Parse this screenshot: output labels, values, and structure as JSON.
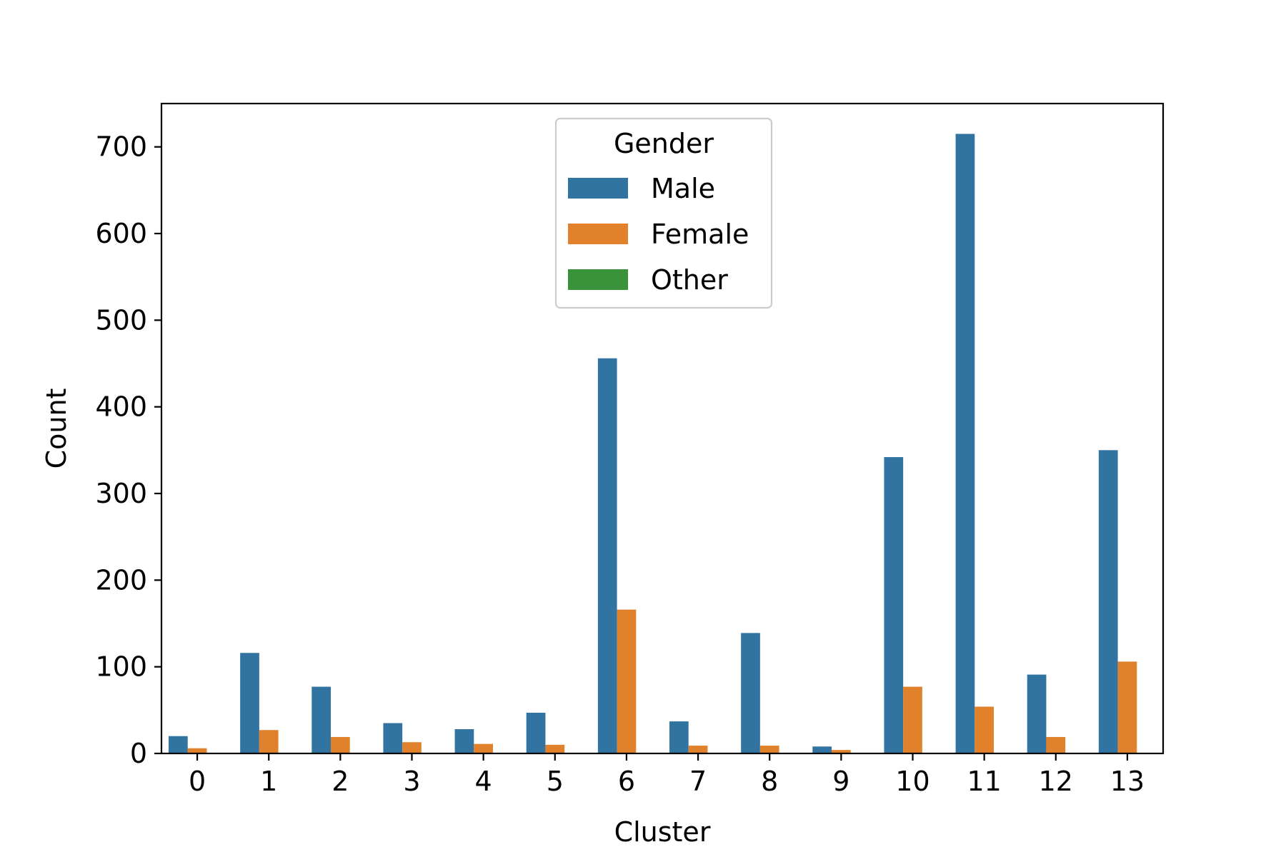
{
  "chart_data": {
    "type": "bar",
    "title": "",
    "xlabel": "Cluster",
    "ylabel": "Count",
    "categories": [
      "0",
      "1",
      "2",
      "3",
      "4",
      "5",
      "6",
      "7",
      "8",
      "9",
      "10",
      "11",
      "12",
      "13"
    ],
    "series": [
      {
        "name": "Male",
        "color": "#3274a1",
        "values": [
          20,
          116,
          77,
          35,
          28,
          47,
          456,
          37,
          139,
          8,
          342,
          715,
          91,
          350
        ]
      },
      {
        "name": "Female",
        "color": "#e1812c",
        "values": [
          6,
          27,
          19,
          13,
          11,
          10,
          166,
          9,
          9,
          4,
          77,
          54,
          19,
          106
        ]
      },
      {
        "name": "Other",
        "color": "#3a923a",
        "values": [
          0,
          0,
          0,
          0,
          0,
          0,
          0,
          0,
          0,
          0,
          0,
          0,
          0,
          0
        ]
      }
    ],
    "ylim": [
      0,
      750
    ],
    "yticks": [
      0,
      100,
      200,
      300,
      400,
      500,
      600,
      700
    ],
    "grid": false,
    "legend": {
      "title": "Gender",
      "placement": "top-center"
    }
  }
}
